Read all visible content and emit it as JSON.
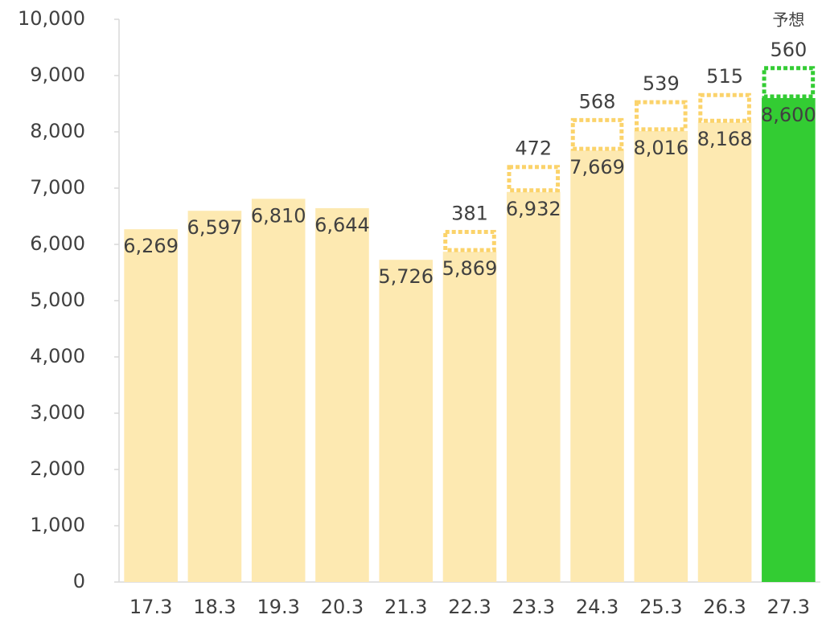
{
  "chart_data": {
    "type": "bar",
    "annotation": "予想",
    "categories": [
      "17.3",
      "18.3",
      "19.3",
      "20.3",
      "21.3",
      "22.3",
      "23.3",
      "24.3",
      "25.3",
      "26.3",
      "27.3"
    ],
    "series": [
      {
        "colors": [
          "#fde9b1",
          "#fde9b1",
          "#fde9b1",
          "#fde9b1",
          "#fde9b1",
          "#fde9b1",
          "#fde9b1",
          "#fde9b1",
          "#fde9b1",
          "#fde9b1",
          "#33cc33"
        ],
        "values": [
          6269,
          6597,
          6810,
          6644,
          5726,
          5869,
          6932,
          7669,
          8016,
          8168,
          8600
        ],
        "value_labels": [
          "6,269",
          "6,597",
          "6,810",
          "6,644",
          "5,726",
          "5,869",
          "6,932",
          "7,669",
          "8,016",
          "8,168",
          "8,600"
        ]
      },
      {
        "colors": [
          "#fbd36b",
          "#fbd36b",
          "#fbd36b",
          "#fbd36b",
          "#fbd36b",
          "#fbd36b",
          "#fbd36b",
          "#fbd36b",
          "#fbd36b",
          "#fbd36b",
          "#33cc33"
        ],
        "dotted": true,
        "values": [
          null,
          null,
          null,
          null,
          null,
          381,
          472,
          568,
          539,
          515,
          560
        ]
      }
    ],
    "ylim": [
      0,
      10000
    ],
    "yticks": [
      0,
      {
        "value": 1000,
        "label": "1,000"
      },
      {
        "value": 2000,
        "label": "2,000"
      },
      {
        "value": 3000,
        "label": "3,000"
      },
      {
        "value": 4000,
        "label": "4,000"
      },
      {
        "value": 5000,
        "label": "5,000"
      },
      {
        "value": 6000,
        "label": "6,000"
      },
      {
        "value": 7000,
        "label": "7,000"
      },
      {
        "value": 8000,
        "label": "8,000"
      },
      {
        "value": 9000,
        "label": "9,000"
      },
      {
        "value": 10000,
        "label": "10,000"
      }
    ],
    "grid": false
  }
}
